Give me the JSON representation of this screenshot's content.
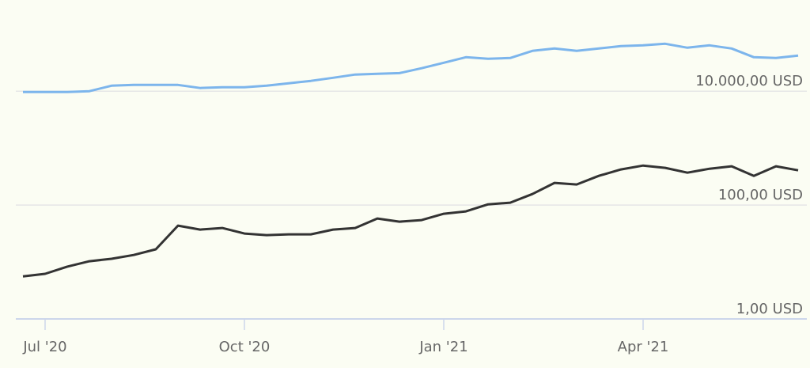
{
  "chart_data": {
    "type": "line",
    "categories": [
      null,
      "Jul '20",
      null,
      null,
      null,
      null,
      null,
      null,
      null,
      null,
      "Oct '20",
      null,
      null,
      null,
      null,
      null,
      null,
      null,
      null,
      "Jan '21",
      null,
      null,
      null,
      null,
      null,
      null,
      null,
      null,
      "Apr '21",
      null,
      null,
      null,
      null,
      null,
      null,
      null
    ],
    "series": [
      {
        "color": "#7cb5ec",
        "values": [
          9700,
          9700,
          9700,
          10000,
          12500,
          12900,
          12900,
          12900,
          11400,
          11700,
          11700,
          12500,
          13800,
          15200,
          17200,
          19600,
          20200,
          20800,
          25300,
          31600,
          39600,
          37100,
          38300,
          51100,
          56200,
          51100,
          56200,
          61900,
          63900,
          68100,
          58000,
          63900,
          56200,
          39600,
          38300,
          42200
        ]
      },
      {
        "color": "#333333",
        "values": [
          5.6,
          6.2,
          8.3,
          10.3,
          11.4,
          13.3,
          16.7,
          43.5,
          37.1,
          39.6,
          31.6,
          29.7,
          30.6,
          30.6,
          37.1,
          39.6,
          58.1,
          51.1,
          54.5,
          70.3,
          77.4,
          103,
          110,
          156,
          245,
          230,
          326,
          422,
          495,
          450,
          371,
          435,
          480,
          326,
          480,
          408
        ]
      }
    ],
    "log_scale": true,
    "ylim": [
      1,
      400000
    ],
    "yticks": [
      {
        "value": 1,
        "label": "1,00 USD"
      },
      {
        "value": 100,
        "label": "100,00 USD"
      },
      {
        "value": 10000,
        "label": "10.000,00 USD"
      }
    ],
    "grid": true
  }
}
